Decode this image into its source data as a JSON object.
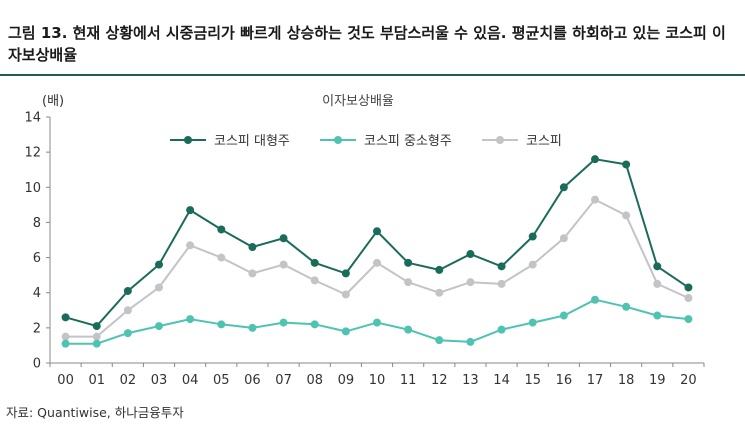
{
  "figure": {
    "title": "그림 13. 현재 상황에서 시중금리가 빠르게 상승하는 것도 부담스러울 수 있음. 평균치를 하회하고 있는 코스피 이자보상배율",
    "source": "자료: Quantiwise, 하나금융투자"
  },
  "chart_data": {
    "type": "line",
    "title": "이자보상배율",
    "ylabel": "(배)",
    "xlabel": "",
    "ylim": [
      0,
      14
    ],
    "yticks": [
      0,
      2,
      4,
      6,
      8,
      10,
      12,
      14
    ],
    "grid": false,
    "legend_position": "top-center",
    "categories": [
      "00",
      "01",
      "02",
      "03",
      "04",
      "05",
      "06",
      "07",
      "08",
      "09",
      "10",
      "11",
      "12",
      "13",
      "14",
      "15",
      "16",
      "17",
      "18",
      "19",
      "20"
    ],
    "series": [
      {
        "name": "코스피 대형주",
        "color": "#1b6b5a",
        "values": [
          2.6,
          2.1,
          4.1,
          5.6,
          8.7,
          7.6,
          6.6,
          7.1,
          5.7,
          5.1,
          7.5,
          5.7,
          5.3,
          6.2,
          5.5,
          7.2,
          10.0,
          11.6,
          11.3,
          5.5,
          4.3
        ]
      },
      {
        "name": "코스피 중소형주",
        "color": "#4fc3b2",
        "values": [
          1.1,
          1.1,
          1.7,
          2.1,
          2.5,
          2.2,
          2.0,
          2.3,
          2.2,
          1.8,
          2.3,
          1.9,
          1.3,
          1.2,
          1.9,
          2.3,
          2.7,
          3.6,
          3.2,
          2.7,
          2.5
        ]
      },
      {
        "name": "코스피",
        "color": "#c3c3c8",
        "values": [
          1.5,
          1.5,
          3.0,
          4.3,
          6.7,
          6.0,
          5.1,
          5.6,
          4.7,
          3.9,
          5.7,
          4.6,
          4.0,
          4.6,
          4.5,
          5.6,
          7.1,
          9.3,
          8.4,
          4.5,
          3.7
        ]
      }
    ]
  }
}
